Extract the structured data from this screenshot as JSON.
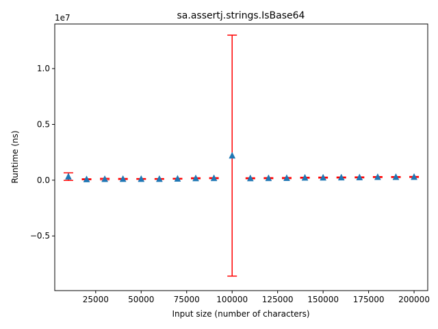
{
  "chart_data": {
    "type": "scatter",
    "title": "sa.assertj.strings.IsBase64",
    "xlabel": "Input size (number of characters)",
    "ylabel": "Runtime (ns)",
    "offset_label": "1e7",
    "xlim": [
      2500,
      207500
    ],
    "ylim": [
      -9900000,
      14000000
    ],
    "x_ticks": [
      25000,
      50000,
      75000,
      100000,
      125000,
      150000,
      175000,
      200000
    ],
    "x_tick_labels": [
      "25000",
      "50000",
      "75000",
      "100000",
      "125000",
      "150000",
      "175000",
      "200000"
    ],
    "y_ticks": [
      -5000000,
      0,
      5000000,
      10000000
    ],
    "y_tick_labels": [
      "−0.5",
      "0.0",
      "0.5",
      "1.0"
    ],
    "grid": false,
    "marker_color": "#1f77b4",
    "errorbar_color": "#ff0000",
    "points": [
      {
        "x": 10000,
        "y": 320000,
        "yerr": 340000
      },
      {
        "x": 20000,
        "y": 80000,
        "yerr": 40000
      },
      {
        "x": 30000,
        "y": 100000,
        "yerr": 60000
      },
      {
        "x": 40000,
        "y": 110000,
        "yerr": 40000
      },
      {
        "x": 50000,
        "y": 110000,
        "yerr": 30000
      },
      {
        "x": 60000,
        "y": 110000,
        "yerr": 30000
      },
      {
        "x": 70000,
        "y": 130000,
        "yerr": 30000
      },
      {
        "x": 80000,
        "y": 170000,
        "yerr": 40000
      },
      {
        "x": 90000,
        "y": 180000,
        "yerr": 40000
      },
      {
        "x": 100000,
        "y": 2200000,
        "yerr": 10800000
      },
      {
        "x": 110000,
        "y": 170000,
        "yerr": 40000
      },
      {
        "x": 120000,
        "y": 180000,
        "yerr": 40000
      },
      {
        "x": 130000,
        "y": 190000,
        "yerr": 50000
      },
      {
        "x": 140000,
        "y": 220000,
        "yerr": 40000
      },
      {
        "x": 150000,
        "y": 230000,
        "yerr": 40000
      },
      {
        "x": 160000,
        "y": 240000,
        "yerr": 40000
      },
      {
        "x": 170000,
        "y": 250000,
        "yerr": 40000
      },
      {
        "x": 180000,
        "y": 280000,
        "yerr": 40000
      },
      {
        "x": 190000,
        "y": 280000,
        "yerr": 40000
      },
      {
        "x": 200000,
        "y": 290000,
        "yerr": 40000
      }
    ]
  }
}
